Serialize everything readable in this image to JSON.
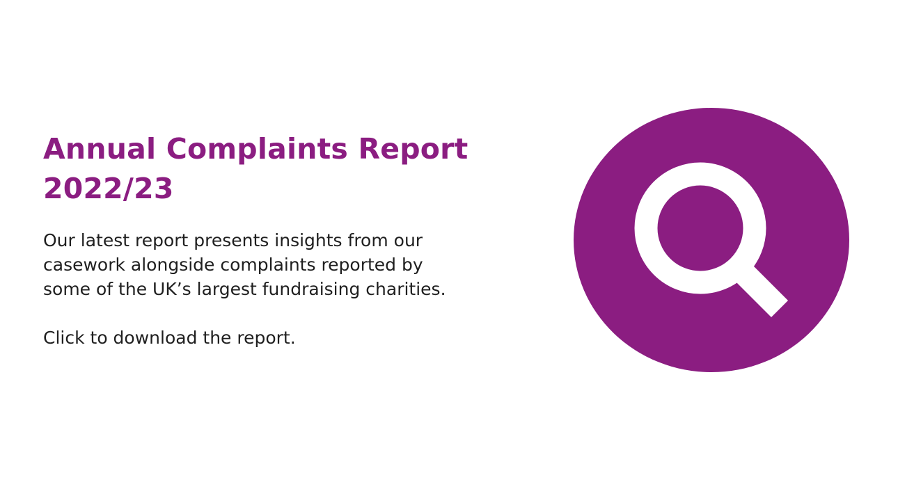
{
  "header": {
    "title_lines": [
      "Annual Complaints Report",
      "2022/23"
    ]
  },
  "body": {
    "lines": [
      "Our latest report presents insights from our",
      "casework alongside complaints reported by",
      "some of the UK’s largest fundraising charities."
    ],
    "call_to_action": "Click to download the report."
  }
}
